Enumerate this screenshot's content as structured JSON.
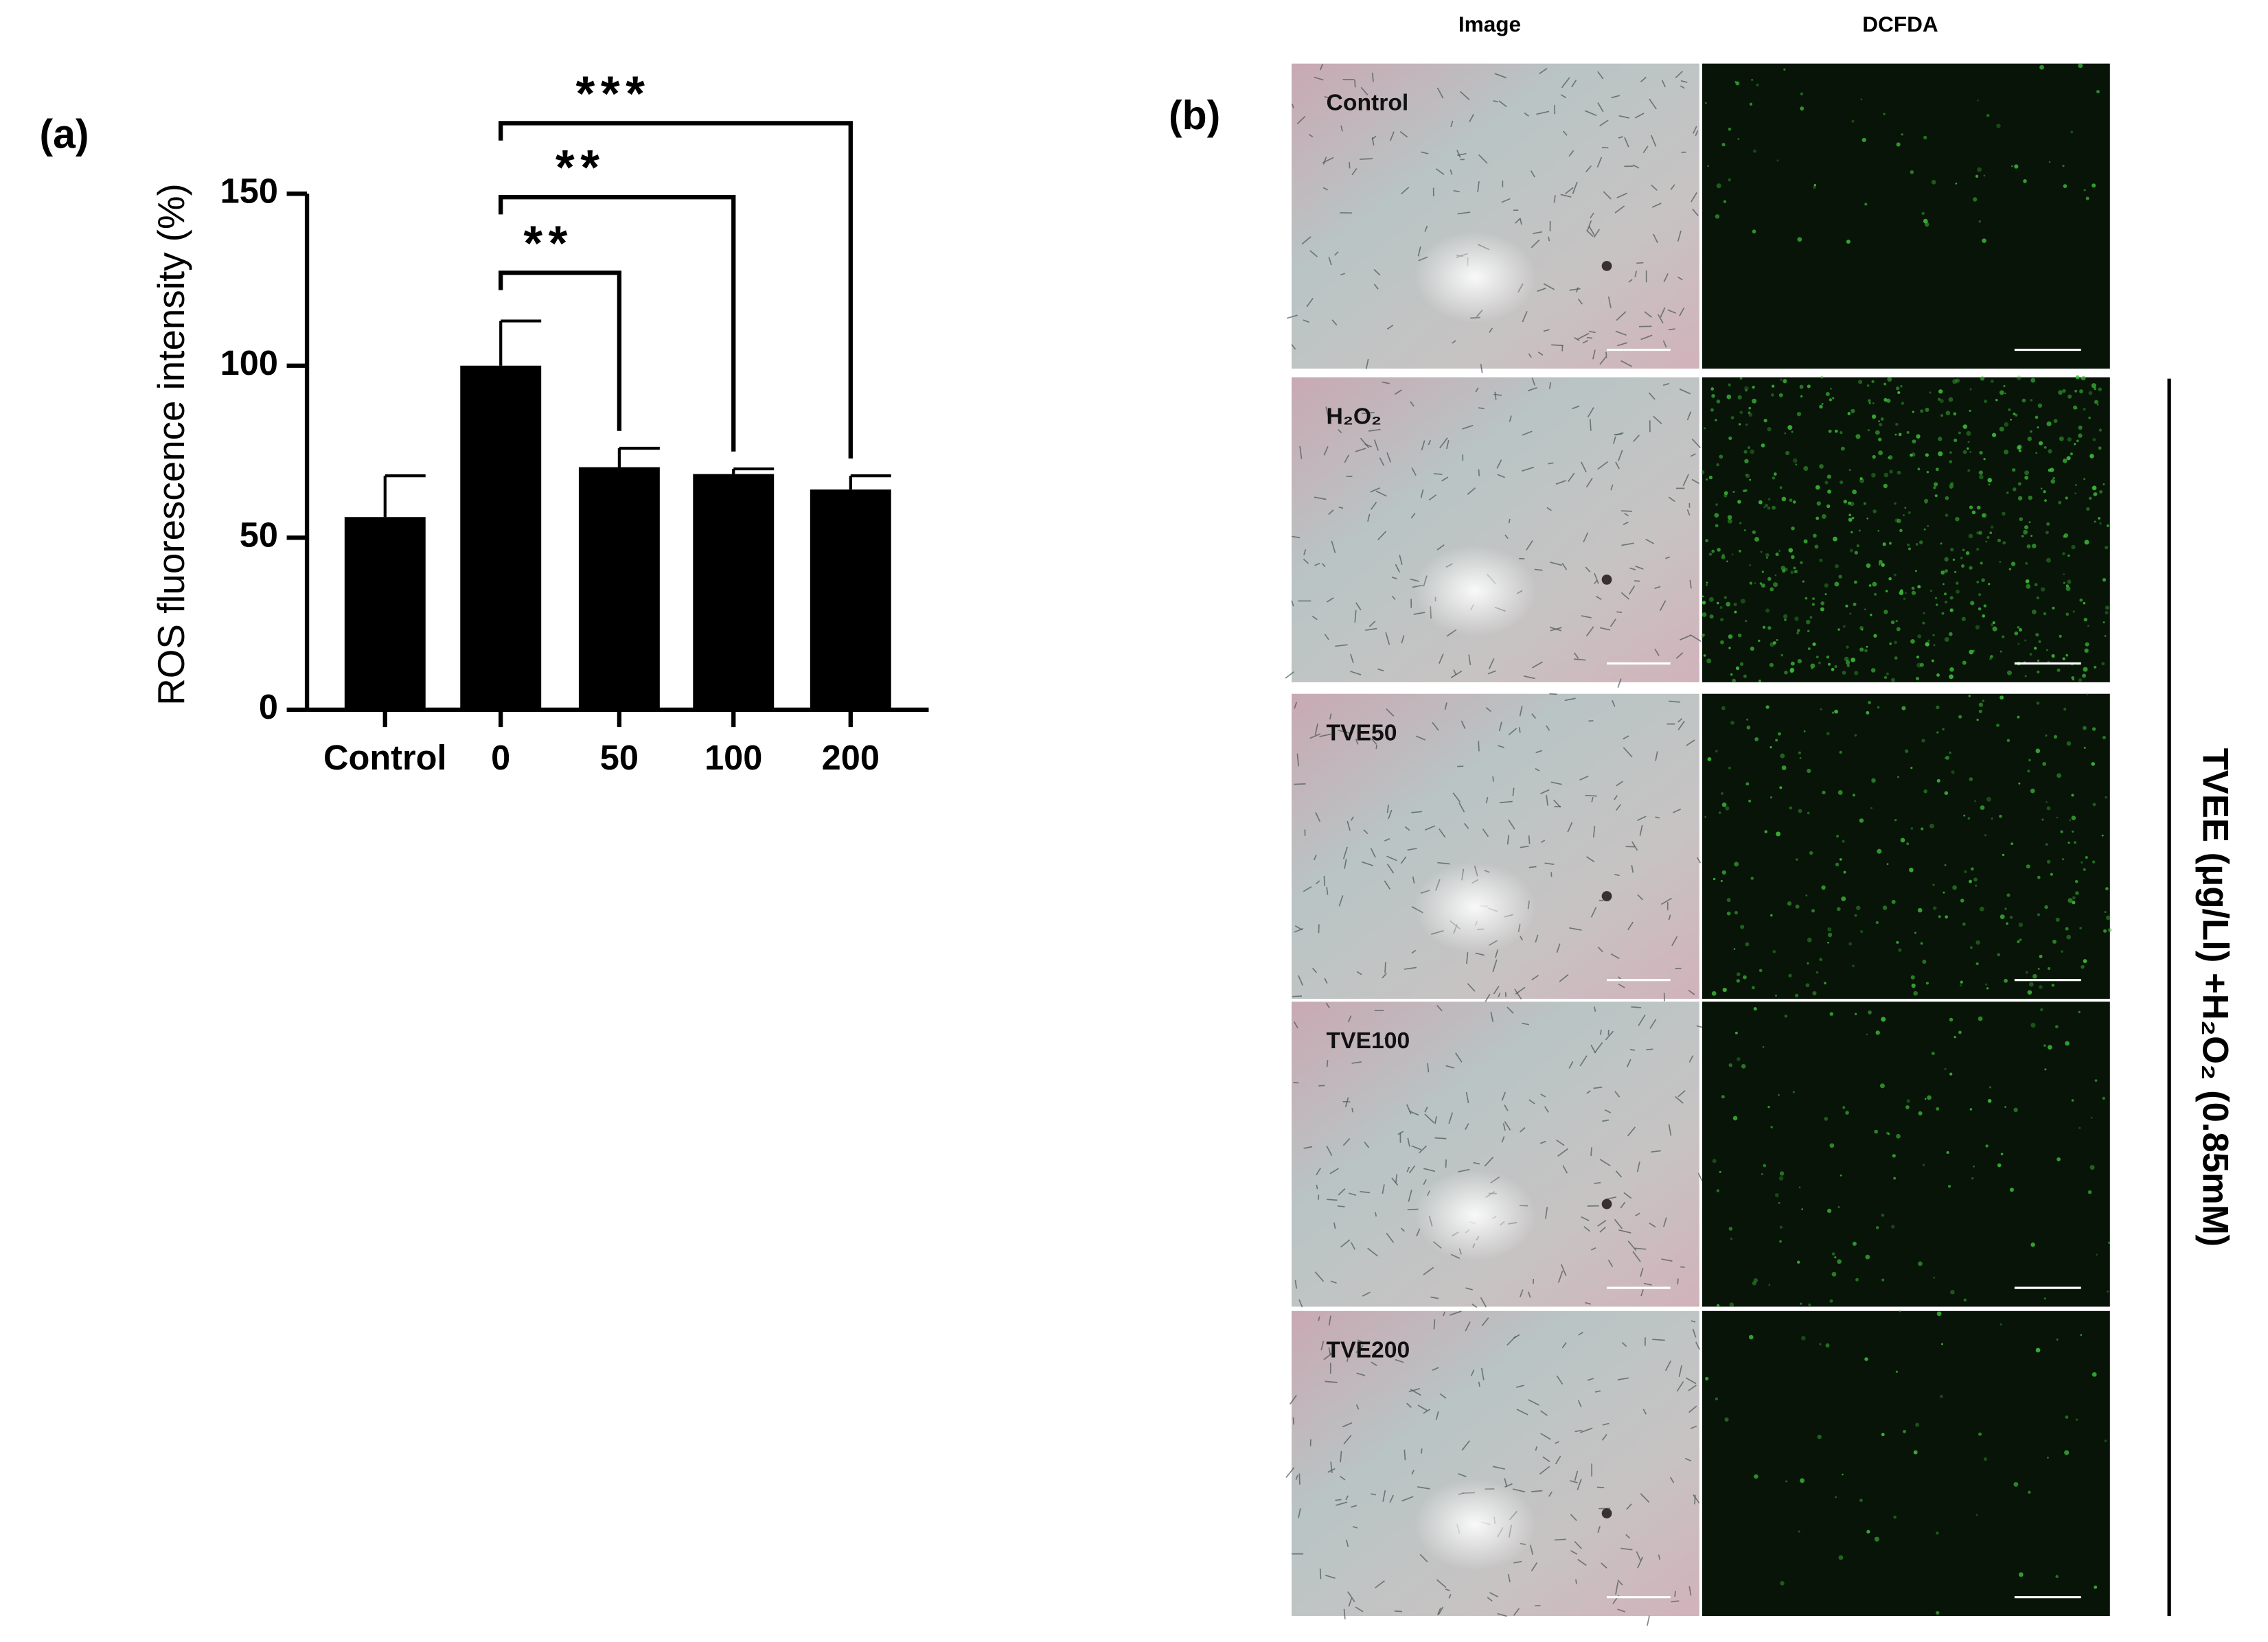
{
  "panel_a": {
    "label": "(a)"
  },
  "chart_data": {
    "type": "bar",
    "categories": [
      "Control",
      "0",
      "50",
      "100",
      "200"
    ],
    "values": [
      56,
      100,
      70.5,
      68.5,
      64
    ],
    "errors": [
      12,
      13,
      5.5,
      1.5,
      4
    ],
    "color": "#000000",
    "ylabel": "ROS fluorescence intensity (%)",
    "ylim": [
      0,
      150
    ],
    "yticks": [
      0,
      50,
      100,
      150
    ],
    "annotations": [
      {
        "text": "**",
        "x": [
          "0",
          "50"
        ],
        "y": 127
      },
      {
        "text": "**",
        "x": [
          "0",
          "100"
        ],
        "y": 149
      },
      {
        "text": "***",
        "x": [
          "0",
          "200"
        ],
        "y": 170.5
      }
    ]
  },
  "panel_b": {
    "label": "(b)",
    "columns": [
      "Image",
      "DCFDA"
    ],
    "rows": [
      "Control",
      "H₂O₂",
      "TVE50",
      "TVE100",
      "TVE200"
    ],
    "side_label": "TVEE (μg/Ll) +H₂O₂ (0.85mM)"
  }
}
